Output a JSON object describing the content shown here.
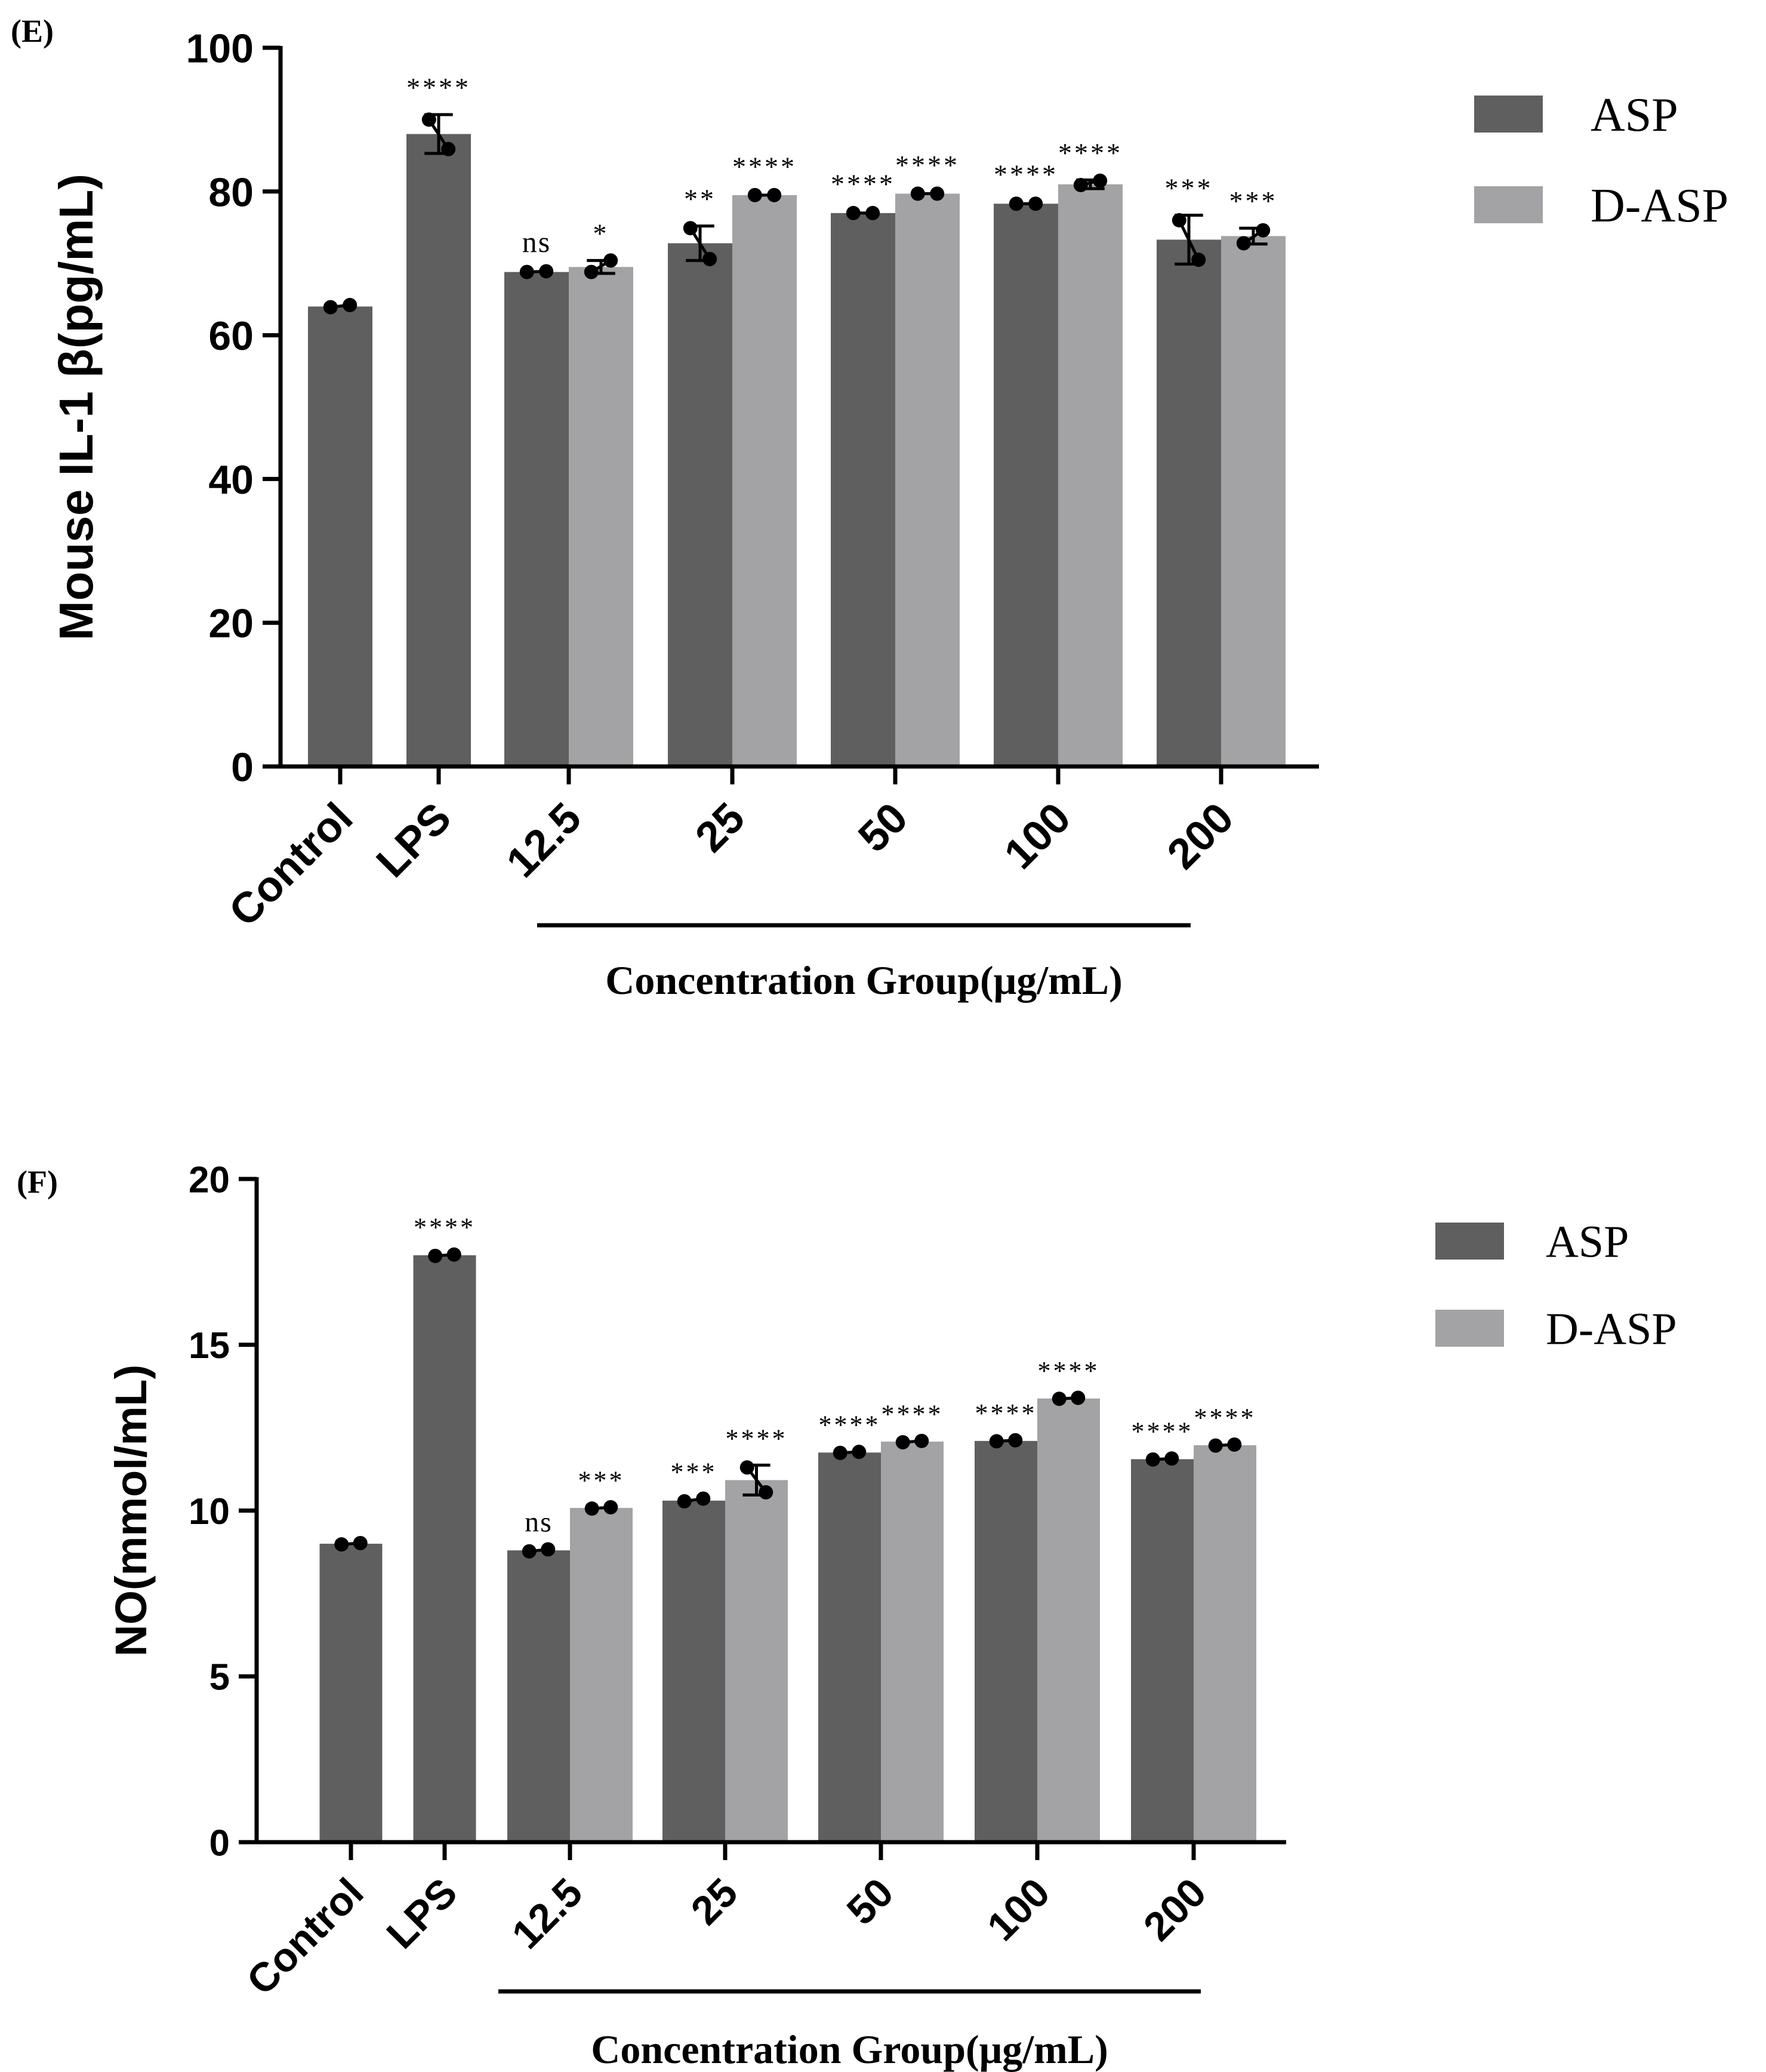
{
  "colors": {
    "asp": "#5f5f5f",
    "dasp": "#a3a3a6",
    "axis": "#000000",
    "point": "#000000"
  },
  "chart_data": [
    {
      "type": "bar",
      "panel_label": "(E)",
      "ylabel": "Mouse IL-1 β(pg/mL)",
      "xlabel": "Concentration Group(μg/mL)",
      "ylim": [
        0,
        100
      ],
      "yticks": [
        0,
        20,
        40,
        60,
        80,
        100
      ],
      "legend": {
        "position": "top-right",
        "entries": [
          "ASP",
          "D-ASP"
        ]
      },
      "categories": [
        "Control",
        "LPS",
        "12.5",
        "25",
        "50",
        "100",
        "200"
      ],
      "series": [
        {
          "name": "ASP",
          "values": [
            64,
            88,
            68.8,
            72.8,
            77,
            78.3,
            73.3
          ],
          "errors": [
            0,
            2.7,
            0.3,
            2.4,
            0.3,
            0.3,
            3.4
          ],
          "points": [
            [
              63.9,
              64.2
            ],
            [
              90,
              85.9
            ],
            [
              68.8,
              68.9
            ],
            [
              74.9,
              70.6
            ],
            [
              77,
              77
            ],
            [
              78.3,
              78.3
            ],
            [
              76,
              70.5
            ]
          ],
          "significance": [
            "",
            "****",
            "ns",
            "**",
            "****",
            "****",
            "***"
          ]
        },
        {
          "name": "D-ASP",
          "values": [
            null,
            null,
            69.5,
            79.5,
            79.7,
            81,
            73.8
          ],
          "errors": [
            0,
            0,
            0.9,
            0.2,
            0.2,
            0.6,
            1.1
          ],
          "points": [
            null,
            null,
            [
              68.8,
              70.4
            ],
            [
              79.5,
              79.5
            ],
            [
              79.7,
              79.7
            ],
            [
              80.9,
              81.5
            ],
            [
              72.8,
              74.6
            ]
          ],
          "significance": [
            "",
            "",
            "*",
            "****",
            "****",
            "****",
            "***"
          ]
        }
      ]
    },
    {
      "type": "bar",
      "panel_label": "(F)",
      "ylabel": "NO(mmol/mL)",
      "xlabel": "Concentration Group(μg/mL)",
      "ylim": [
        0,
        20
      ],
      "yticks": [
        0,
        5,
        10,
        15,
        20
      ],
      "legend": {
        "position": "top-right",
        "entries": [
          "ASP",
          "D-ASP"
        ]
      },
      "categories": [
        "Control",
        "LPS",
        "12.5",
        "25",
        "50",
        "100",
        "200"
      ],
      "series": [
        {
          "name": "ASP",
          "values": [
            9,
            17.7,
            8.8,
            10.3,
            11.75,
            12.1,
            11.55
          ],
          "errors": [
            0,
            0.04,
            0.03,
            0.06,
            0.03,
            0.03,
            0.03
          ],
          "points": [
            [
              8.98,
              9.02
            ],
            [
              17.68,
              17.72
            ],
            [
              8.77,
              8.83
            ],
            [
              10.28,
              10.36
            ],
            [
              11.74,
              11.77
            ],
            [
              12.09,
              12.12
            ],
            [
              11.54,
              11.57
            ]
          ],
          "significance": [
            "",
            "****",
            "ns",
            "***",
            "****",
            "****",
            "****"
          ]
        },
        {
          "name": "D-ASP",
          "values": [
            null,
            null,
            10.08,
            10.92,
            12.08,
            13.38,
            11.97
          ],
          "errors": [
            0,
            0,
            0.03,
            0.45,
            0.03,
            0.03,
            0.03
          ],
          "points": [
            null,
            null,
            [
              10.06,
              10.1
            ],
            [
              11.3,
              10.55
            ],
            [
              12.06,
              12.1
            ],
            [
              13.37,
              13.4
            ],
            [
              11.96,
              11.99
            ]
          ],
          "significance": [
            "",
            "",
            "***",
            "****",
            "****",
            "****",
            "****"
          ]
        }
      ]
    }
  ]
}
